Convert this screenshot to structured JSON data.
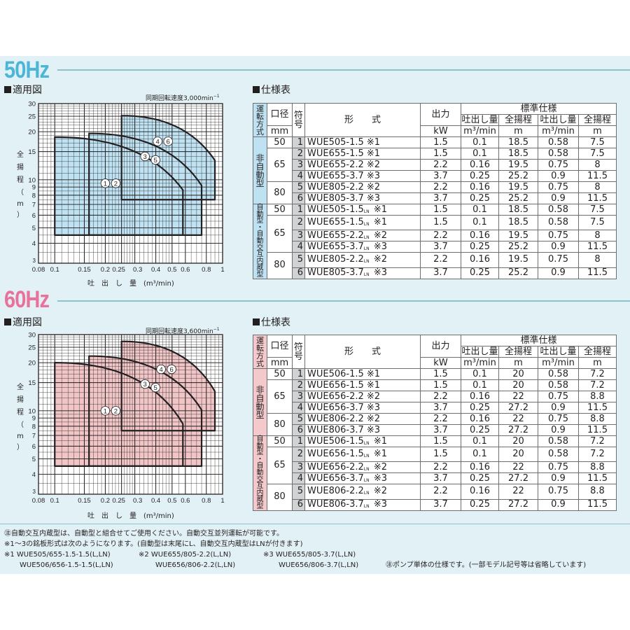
{
  "sections": [
    {
      "id": "50hz",
      "title": "50Hz",
      "title_color": "#4bb6d8",
      "line_color": "#8bc4cc",
      "chart_label": "適用図",
      "rpm_label": "同期回転速度3,000min",
      "rpm_sup": "−1",
      "ylabel_chars": [
        "全",
        "揚",
        "程",
        "（",
        "m",
        "）"
      ],
      "xlabel": "吐　出　し　量　(m³/min)",
      "table_label": "仕様表",
      "accent_fill": "#bfe2f3",
      "mode_fill": "#bfe2f3",
      "table": {
        "headers": {
          "mode": "運転方式",
          "bore": "口径",
          "bore_unit": "mm",
          "symbol": "符号",
          "model": "形　　式",
          "output": "出力",
          "output_unit": "kW",
          "standard": "標準仕様",
          "flow1": "吐出し量",
          "head1": "全揚程",
          "flow2": "吐出し量",
          "head2": "全揚程",
          "flow_unit": "m³/min",
          "head_unit": "m"
        },
        "groups": [
          {
            "mode": "非自動型",
            "rows": [
              {
                "bore": "50",
                "sym": "1",
                "model": "WUE505-1.5",
                "ln": false,
                "note": "※1",
                "kw": "1.5",
                "q1": "0.1",
                "h1": "18.5",
                "q2": "0.58",
                "h2": "7.5"
              },
              {
                "bore": "65",
                "sym": "2",
                "model": "WUE655-1.5",
                "ln": false,
                "note": "※1",
                "kw": "1.5",
                "q1": "0.1",
                "h1": "18.5",
                "q2": "0.58",
                "h2": "7.5"
              },
              {
                "bore": "",
                "sym": "3",
                "model": "WUE655-2.2",
                "ln": false,
                "note": "※2",
                "kw": "2.2",
                "q1": "0.16",
                "h1": "19.5",
                "q2": "0.75",
                "h2": "8"
              },
              {
                "bore": "",
                "sym": "4",
                "model": "WUE655-3.7",
                "ln": false,
                "note": "※3",
                "kw": "3.7",
                "q1": "0.25",
                "h1": "25.2",
                "q2": "0.9",
                "h2": "11.5"
              },
              {
                "bore": "80",
                "sym": "5",
                "model": "WUE805-2.2",
                "ln": false,
                "note": "※2",
                "kw": "2.2",
                "q1": "0.16",
                "h1": "19.5",
                "q2": "0.75",
                "h2": "8"
              },
              {
                "bore": "",
                "sym": "6",
                "model": "WUE805-3.7",
                "ln": false,
                "note": "※3",
                "kw": "3.7",
                "q1": "0.25",
                "h1": "25.2",
                "q2": "0.9",
                "h2": "11.5"
              }
            ]
          },
          {
            "mode": "自動型・自動交互内蔵型",
            "rows": [
              {
                "bore": "50",
                "sym": "1",
                "model": "WUE505-1.5",
                "ln": true,
                "note": "※1",
                "kw": "1.5",
                "q1": "0.1",
                "h1": "18.5",
                "q2": "0.58",
                "h2": "7.5"
              },
              {
                "bore": "65",
                "sym": "2",
                "model": "WUE655-1.5",
                "ln": true,
                "note": "※1",
                "kw": "1.5",
                "q1": "0.1",
                "h1": "18.5",
                "q2": "0.58",
                "h2": "7.5"
              },
              {
                "bore": "",
                "sym": "3",
                "model": "WUE655-2.2",
                "ln": true,
                "note": "※2",
                "kw": "2.2",
                "q1": "0.16",
                "h1": "19.5",
                "q2": "0.75",
                "h2": "8"
              },
              {
                "bore": "",
                "sym": "4",
                "model": "WUE655-3.7",
                "ln": true,
                "note": "※3",
                "kw": "3.7",
                "q1": "0.25",
                "h1": "25.2",
                "q2": "0.9",
                "h2": "11.5"
              },
              {
                "bore": "80",
                "sym": "5",
                "model": "WUE805-2.2",
                "ln": true,
                "note": "※2",
                "kw": "2.2",
                "q1": "0.16",
                "h1": "19.5",
                "q2": "0.75",
                "h2": "8"
              },
              {
                "bore": "",
                "sym": "6",
                "model": "WUE805-3.7",
                "ln": true,
                "note": "※3",
                "kw": "3.7",
                "q1": "0.25",
                "h1": "25.2",
                "q2": "0.9",
                "h2": "11.5"
              }
            ]
          }
        ]
      }
    },
    {
      "id": "60hz",
      "title": "60Hz",
      "title_color": "#e8729a",
      "line_color": "#8bc4cc",
      "chart_label": "適用図",
      "rpm_label": "同期回転速度3,600min",
      "rpm_sup": "−1",
      "ylabel_chars": [
        "全",
        "揚",
        "程",
        "（",
        "m",
        "）"
      ],
      "xlabel": "吐　出　し　量　(m³/min)",
      "table_label": "仕様表",
      "accent_fill": "#f1c4c6",
      "mode_fill": "#f3c9cc",
      "table": {
        "headers": {
          "mode": "運転方式",
          "bore": "口径",
          "bore_unit": "mm",
          "symbol": "符号",
          "model": "形　　式",
          "output": "出力",
          "output_unit": "kW",
          "standard": "標準仕様",
          "flow1": "吐出し量",
          "head1": "全揚程",
          "flow2": "吐出し量",
          "head2": "全揚程",
          "flow_unit": "m³/min",
          "head_unit": "m"
        },
        "groups": [
          {
            "mode": "非自動型",
            "rows": [
              {
                "bore": "50",
                "sym": "1",
                "model": "WUE506-1.5",
                "ln": false,
                "note": "※1",
                "kw": "1.5",
                "q1": "0.1",
                "h1": "20",
                "q2": "0.58",
                "h2": "7.2"
              },
              {
                "bore": "65",
                "sym": "2",
                "model": "WUE656-1.5",
                "ln": false,
                "note": "※1",
                "kw": "1.5",
                "q1": "0.1",
                "h1": "20",
                "q2": "0.58",
                "h2": "7.2"
              },
              {
                "bore": "",
                "sym": "3",
                "model": "WUE656-2.2",
                "ln": false,
                "note": "※2",
                "kw": "2.2",
                "q1": "0.16",
                "h1": "22",
                "q2": "0.75",
                "h2": "8.8"
              },
              {
                "bore": "",
                "sym": "4",
                "model": "WUE656-3.7",
                "ln": false,
                "note": "※3",
                "kw": "3.7",
                "q1": "0.25",
                "h1": "27.2",
                "q2": "0.9",
                "h2": "11.5"
              },
              {
                "bore": "80",
                "sym": "5",
                "model": "WUE806-2.2",
                "ln": false,
                "note": "※2",
                "kw": "2.2",
                "q1": "0.16",
                "h1": "22",
                "q2": "0.75",
                "h2": "8.8"
              },
              {
                "bore": "",
                "sym": "6",
                "model": "WUE806-3.7",
                "ln": false,
                "note": "※3",
                "kw": "3.7",
                "q1": "0.25",
                "h1": "27.2",
                "q2": "0.9",
                "h2": "11.5"
              }
            ]
          },
          {
            "mode": "自動型・自動交互内蔵型",
            "rows": [
              {
                "bore": "50",
                "sym": "1",
                "model": "WUE506-1.5",
                "ln": true,
                "note": "※1",
                "kw": "1.5",
                "q1": "0.1",
                "h1": "20",
                "q2": "0.58",
                "h2": "7.2"
              },
              {
                "bore": "65",
                "sym": "2",
                "model": "WUE656-1.5",
                "ln": true,
                "note": "※1",
                "kw": "1.5",
                "q1": "0.1",
                "h1": "20",
                "q2": "0.58",
                "h2": "7.2"
              },
              {
                "bore": "",
                "sym": "3",
                "model": "WUE656-2.2",
                "ln": true,
                "note": "※2",
                "kw": "2.2",
                "q1": "0.16",
                "h1": "22",
                "q2": "0.75",
                "h2": "8.8"
              },
              {
                "bore": "",
                "sym": "4",
                "model": "WUE656-3.7",
                "ln": true,
                "note": "※3",
                "kw": "3.7",
                "q1": "0.25",
                "h1": "27.2",
                "q2": "0.9",
                "h2": "11.5"
              },
              {
                "bore": "80",
                "sym": "5",
                "model": "WUE806-2.2",
                "ln": true,
                "note": "※2",
                "kw": "2.2",
                "q1": "0.16",
                "h1": "22",
                "q2": "0.75",
                "h2": "8.8"
              },
              {
                "bore": "",
                "sym": "6",
                "model": "WUE806-3.7",
                "ln": true,
                "note": "※3",
                "kw": "3.7",
                "q1": "0.25",
                "h1": "27.2",
                "q2": "0.9",
                "h2": "11.5"
              }
            ]
          }
        ]
      }
    }
  ],
  "ln_sub": "LN",
  "notes": [
    "㊟自動交互内蔵型は、自動型と組合せてご使用ください。自動交互並列運転が可能です。",
    "※1～3の銘板形式は次のようになります。(自動型は末尾にL、自動交互内蔵型はLNが付きます)"
  ],
  "footnotes": {
    "n1_line1": "※1 WUE505/655-1.5-1.5(L,LN)",
    "n1_line2": "WUE506/656-1.5-1.5(L,LN)",
    "n2_line1": "※2 WUE655/805-2.2(L,LN)",
    "n2_line2": "WUE656/806-2.2(L,LN)",
    "n3_line1": "※3 WUE655/805-3.7(L,LN)",
    "n3_line2": "WUE656/806-3.7(L,LN)",
    "n4": "㊟ポンプ単体の仕様です。(一部モデル記号等は省略しています)"
  },
  "chart_data": [
    {
      "type": "area",
      "title": "適用図 50Hz (同期回転速度3,000min−1)",
      "xlabel": "吐出し量 (m³/min)",
      "ylabel": "全揚程 (m)",
      "xscale": "log",
      "yscale": "log",
      "xlim": [
        0.08,
        1
      ],
      "ylim": [
        3,
        30
      ],
      "xticks": [
        "0.08",
        "0.1",
        "0.15",
        "0.2",
        "0.25",
        "0.3",
        "0.4",
        "0.5",
        "0.6",
        "0.8",
        "1"
      ],
      "yticks": [
        "3",
        "4",
        "5",
        "6",
        "7",
        "8",
        "9",
        "10",
        "15",
        "20",
        "25",
        "30"
      ],
      "grid": true,
      "series": [
        {
          "name": "①②",
          "q_min": 0.1,
          "h_max": 18.5,
          "q_max": 0.58,
          "h_end": 7.5,
          "h_min": 4.5,
          "label_pos": [
            0.2,
            9.5
          ]
        },
        {
          "name": "③⑤",
          "q_min": 0.16,
          "h_max": 19.5,
          "q_max": 0.75,
          "h_end": 8,
          "h_min": 4.5,
          "label_pos": [
            0.345,
            14.0
          ]
        },
        {
          "name": "④⑥",
          "q_min": 0.25,
          "h_max": 25.2,
          "q_max": 0.9,
          "h_end": 11.5,
          "h_min": 7.5,
          "label_pos": [
            0.41,
            17.4
          ]
        }
      ]
    },
    {
      "type": "area",
      "title": "適用図 60Hz (同期回転速度3,600min−1)",
      "xlabel": "吐出し量 (m³/min)",
      "ylabel": "全揚程 (m)",
      "xscale": "log",
      "yscale": "log",
      "xlim": [
        0.08,
        1
      ],
      "ylim": [
        3,
        30
      ],
      "xticks": [
        "0.08",
        "0.1",
        "0.15",
        "0.2",
        "0.25",
        "0.3",
        "0.4",
        "0.5",
        "0.6",
        "0.8",
        "1"
      ],
      "yticks": [
        "3",
        "4",
        "5",
        "6",
        "7",
        "8",
        "9",
        "10",
        "15",
        "20",
        "25",
        "30"
      ],
      "grid": true,
      "series": [
        {
          "name": "①②",
          "q_min": 0.1,
          "h_max": 20,
          "q_max": 0.58,
          "h_end": 7.2,
          "h_min": 4.5,
          "label_pos": [
            0.2,
            10.0
          ]
        },
        {
          "name": "③⑤",
          "q_min": 0.16,
          "h_max": 22,
          "q_max": 0.75,
          "h_end": 8.8,
          "h_min": 4.5,
          "label_pos": [
            0.345,
            14.7
          ]
        },
        {
          "name": "④⑥",
          "q_min": 0.25,
          "h_max": 27.2,
          "q_max": 0.9,
          "h_end": 11.5,
          "h_min": 7.5,
          "label_pos": [
            0.43,
            18.2
          ]
        }
      ]
    }
  ]
}
